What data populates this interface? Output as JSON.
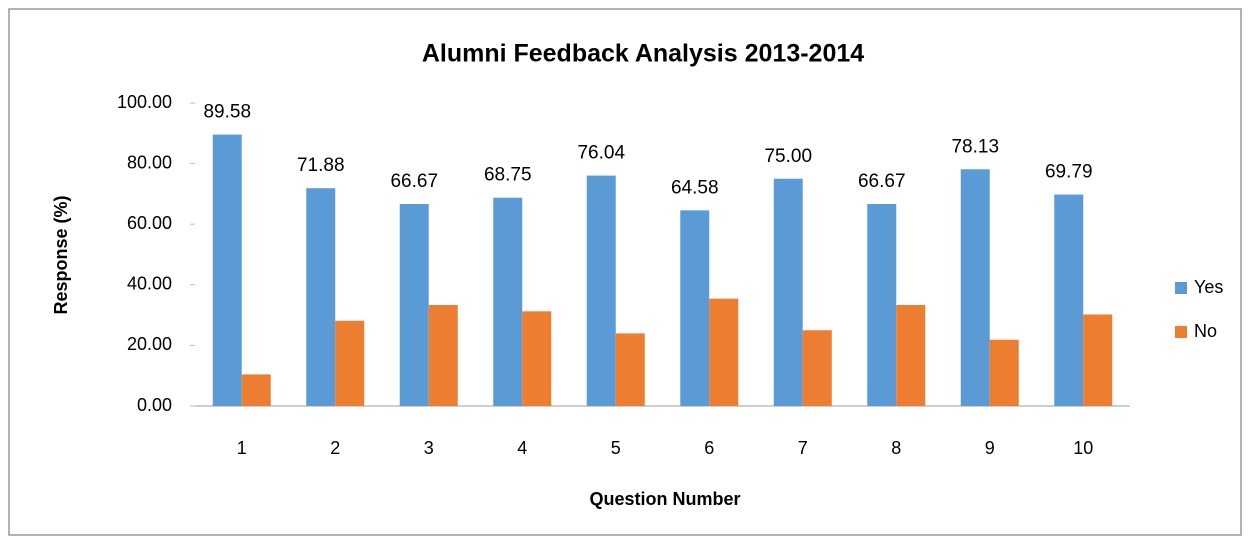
{
  "chart_data": {
    "type": "bar",
    "title": "Alumni Feedback Analysis 2013-2014",
    "xlabel": "Question Number",
    "ylabel": "Response (%)",
    "categories": [
      "1",
      "2",
      "3",
      "4",
      "5",
      "6",
      "7",
      "8",
      "9",
      "10"
    ],
    "series": [
      {
        "name": "Yes",
        "color": "#5b9bd5",
        "values": [
          89.58,
          71.88,
          66.67,
          68.75,
          76.04,
          64.58,
          75.0,
          66.67,
          78.13,
          69.79
        ],
        "value_labels": [
          "89.58",
          "71.88",
          "66.67",
          "68.75",
          "76.04",
          "64.58",
          "75.00",
          "66.67",
          "78.13",
          "69.79"
        ]
      },
      {
        "name": "No",
        "color": "#ed7d31",
        "values": [
          10.42,
          28.12,
          33.33,
          31.25,
          23.96,
          35.42,
          25.0,
          33.33,
          21.87,
          30.21
        ]
      }
    ],
    "ylim": [
      0,
      100
    ],
    "yticks": [
      {
        "value": 0,
        "label": "0.00"
      },
      {
        "value": 20,
        "label": "20.00"
      },
      {
        "value": 40,
        "label": "40.00"
      },
      {
        "value": 60,
        "label": "60.00"
      },
      {
        "value": 80,
        "label": "80.00"
      },
      {
        "value": 100,
        "label": "100.00"
      }
    ],
    "grid": false,
    "legend": "right"
  }
}
